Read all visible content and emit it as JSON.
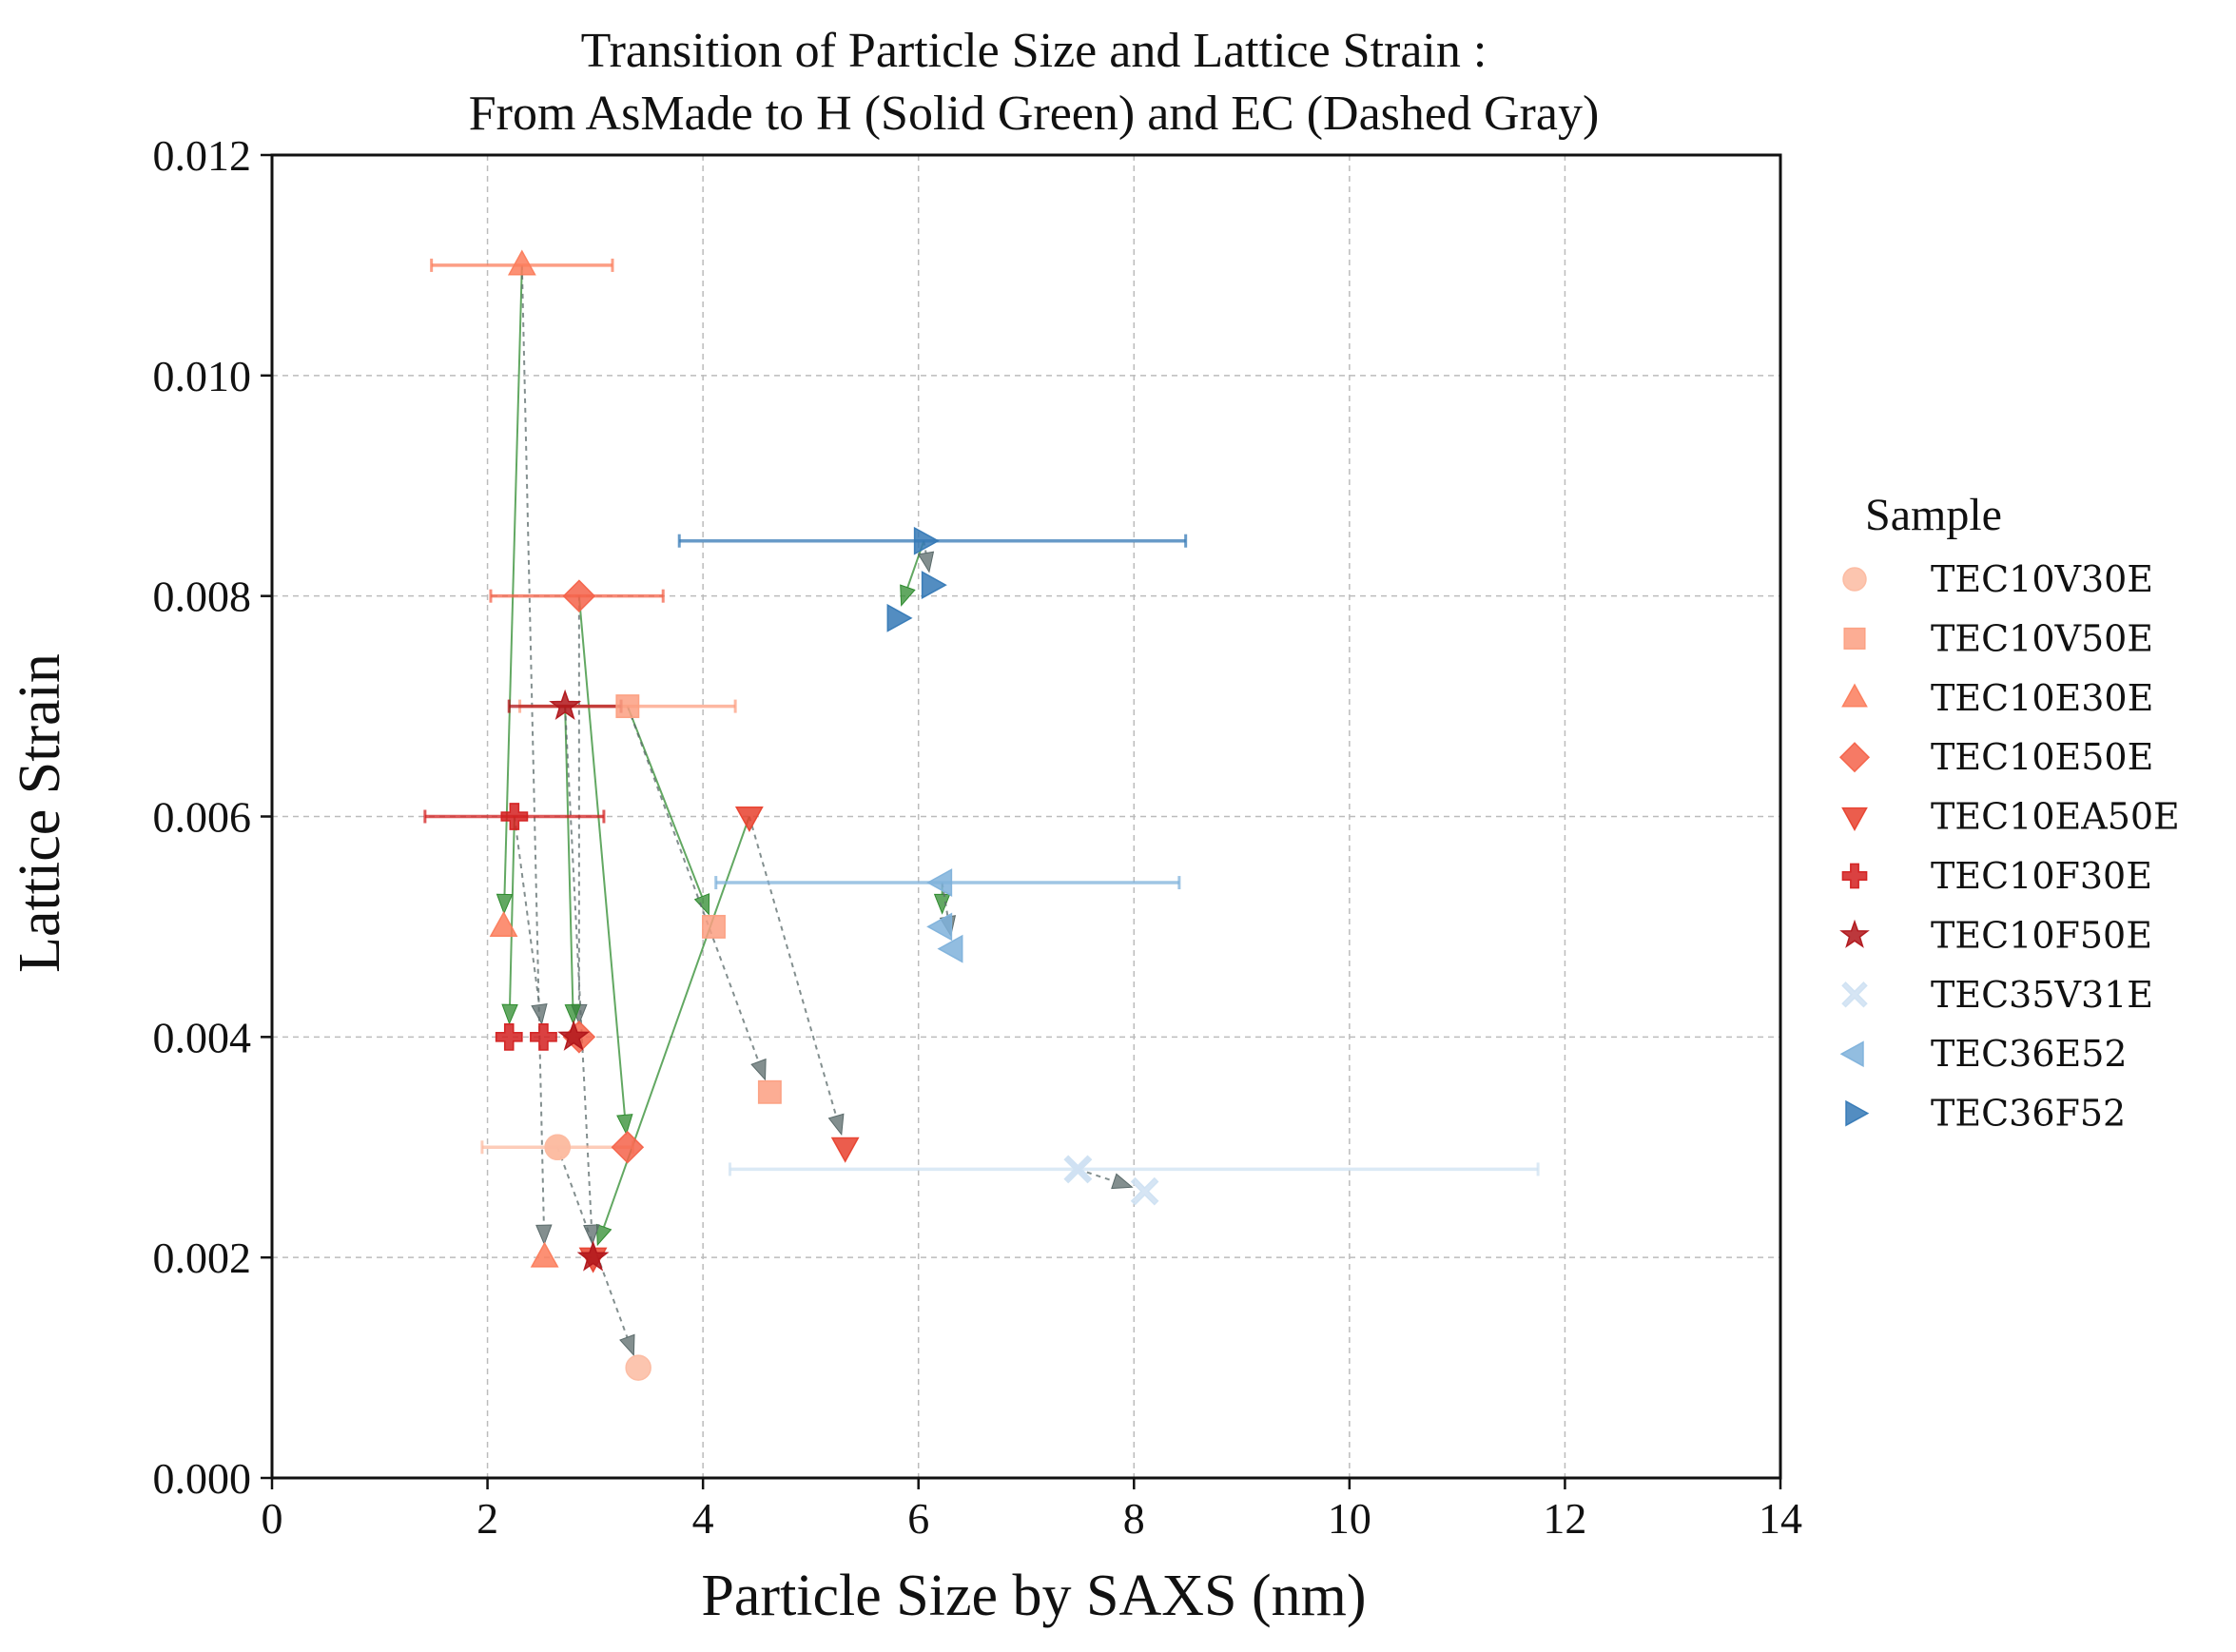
{
  "chart_data": {
    "type": "scatter",
    "title": "Transition of Particle Size and Lattice Strain :",
    "subtitle": "From AsMade to H (Solid Green) and EC (Dashed Gray)",
    "xlabel": "Particle Size by SAXS (nm)",
    "ylabel": "Lattice Strain",
    "xlim": [
      0,
      14
    ],
    "ylim": [
      0,
      0.012
    ],
    "xticks": [
      0,
      2,
      4,
      6,
      8,
      10,
      12,
      14
    ],
    "xtick_labels": [
      "0",
      "2",
      "4",
      "6",
      "8",
      "10",
      "12",
      "14"
    ],
    "yticks": [
      0,
      0.002,
      0.004,
      0.006,
      0.008,
      0.01,
      0.012
    ],
    "ytick_labels": [
      "0.000",
      "0.002",
      "0.004",
      "0.006",
      "0.008",
      "0.010",
      "0.012"
    ],
    "grid": true,
    "legend_title": "Sample",
    "legend_position": "outside-right",
    "transition_colors": {
      "H": "#2e8b2e",
      "EC": "#5a6a6a"
    },
    "series": [
      {
        "name": "TEC10V30E",
        "color": "#fcbba1",
        "marker": "circle",
        "asmade": [
          2.65,
          0.003
        ],
        "asmade_xerr": [
          1.95,
          3.35
        ],
        "H": [
          2.65,
          0.003
        ],
        "EC": [
          3.4,
          0.001
        ]
      },
      {
        "name": "TEC10V50E",
        "color": "#fc9f81",
        "marker": "square",
        "asmade": [
          3.3,
          0.007
        ],
        "asmade_xerr": [
          2.3,
          4.3
        ],
        "H": [
          4.1,
          0.005
        ],
        "EC": [
          4.62,
          0.0035
        ]
      },
      {
        "name": "TEC10E30E",
        "color": "#fb7d5c",
        "marker": "triangle-up",
        "asmade": [
          2.32,
          0.011
        ],
        "asmade_xerr": [
          1.48,
          3.16
        ],
        "H": [
          2.15,
          0.005
        ],
        "EC": [
          2.53,
          0.002
        ]
      },
      {
        "name": "TEC10E50E",
        "color": "#f4634a",
        "marker": "diamond",
        "asmade": [
          2.85,
          0.008
        ],
        "asmade_xerr": [
          2.03,
          3.63
        ],
        "H": [
          3.3,
          0.003
        ],
        "EC": [
          2.85,
          0.004
        ]
      },
      {
        "name": "TEC10EA50E",
        "color": "#e8412e",
        "marker": "triangle-down",
        "asmade": [
          4.43,
          0.006
        ],
        "asmade_xerr": null,
        "H": [
          2.98,
          0.002
        ],
        "EC": [
          5.32,
          0.003
        ]
      },
      {
        "name": "TEC10F30E",
        "color": "#d32020",
        "marker": "plus",
        "asmade": [
          2.25,
          0.006
        ],
        "asmade_xerr": [
          1.42,
          3.08
        ],
        "H": [
          2.2,
          0.004
        ],
        "EC": [
          2.52,
          0.004
        ]
      },
      {
        "name": "TEC10F50E",
        "color": "#b0151a",
        "marker": "star",
        "asmade": [
          2.72,
          0.007
        ],
        "asmade_xerr": [
          2.2,
          3.24
        ],
        "H": [
          2.8,
          0.004
        ],
        "EC": [
          2.98,
          0.002
        ]
      },
      {
        "name": "TEC35V31E",
        "color": "#cfe1f2",
        "marker": "x",
        "asmade": [
          7.48,
          0.0028
        ],
        "asmade_xerr": [
          4.25,
          11.75
        ],
        "H": [
          7.48,
          0.0028
        ],
        "EC": [
          8.1,
          0.0026
        ]
      },
      {
        "name": "TEC36E52",
        "color": "#7fb2db",
        "marker": "triangle-left",
        "asmade": [
          6.22,
          0.0054
        ],
        "asmade_xerr": [
          4.12,
          8.42
        ],
        "H": [
          6.22,
          0.005
        ],
        "EC": [
          6.32,
          0.0048
        ]
      },
      {
        "name": "TEC36F52",
        "color": "#3579b6",
        "marker": "triangle-right",
        "asmade": [
          6.05,
          0.0085
        ],
        "asmade_xerr": [
          3.78,
          8.48
        ],
        "H": [
          5.8,
          0.0078
        ],
        "EC": [
          6.12,
          0.0081
        ]
      }
    ]
  }
}
